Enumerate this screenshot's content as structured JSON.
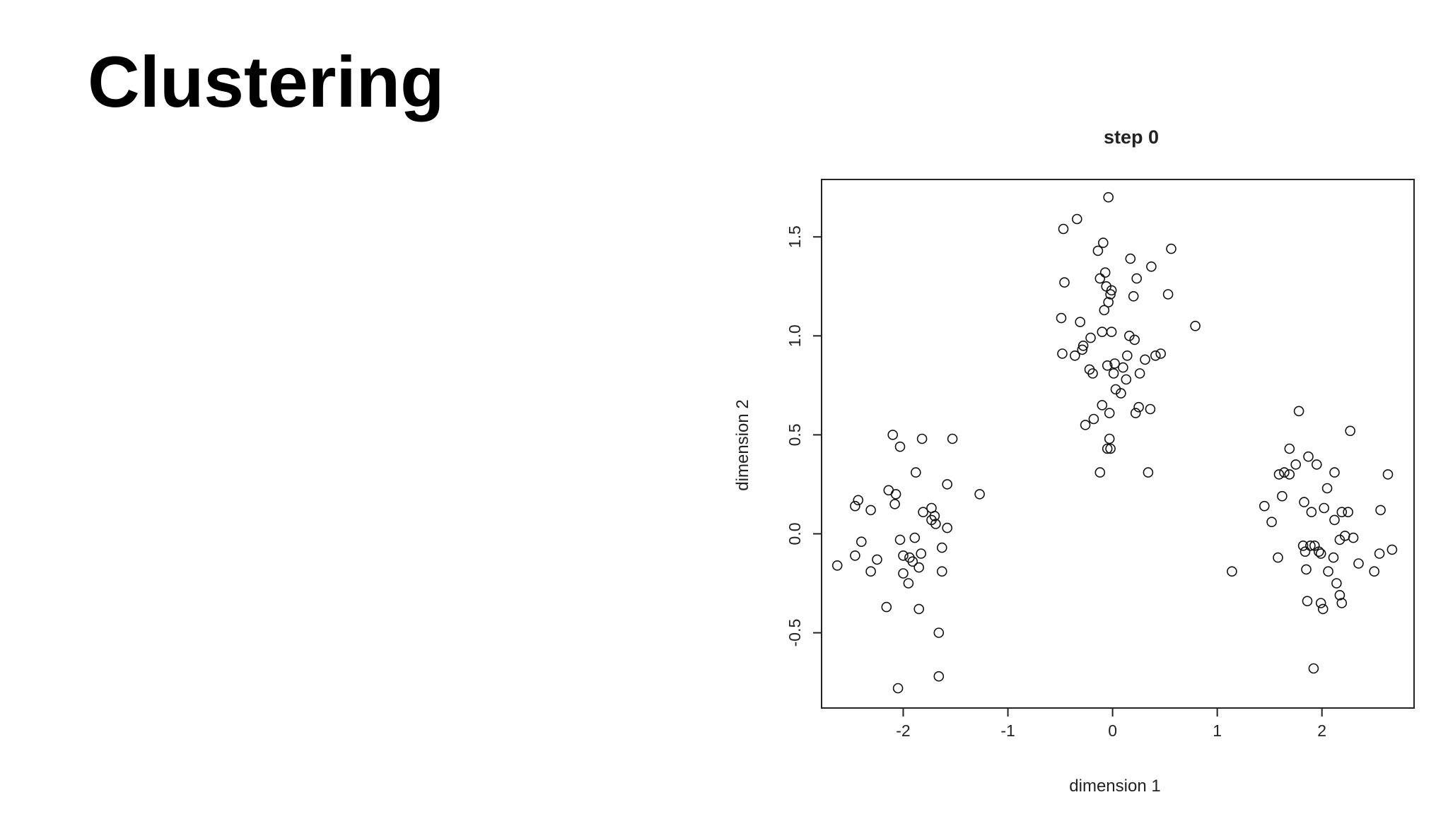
{
  "slide": {
    "title": "Clustering"
  },
  "chart_data": {
    "type": "scatter",
    "title": "step 0",
    "xlabel": "dimension 1",
    "ylabel": "dimension 2",
    "xlim": [
      -2.78,
      2.88
    ],
    "ylim": [
      -0.88,
      1.79
    ],
    "x_ticks": [
      -2,
      -1,
      0,
      1,
      2
    ],
    "y_ticks": [
      -0.5,
      0.0,
      0.5,
      1.0,
      1.5
    ],
    "x_tick_labels": [
      "-2",
      "-1",
      "0",
      "1",
      "2"
    ],
    "y_tick_labels": [
      "-0.5",
      "0.0",
      "0.5",
      "1.0",
      "1.5"
    ],
    "grid": false,
    "legend": "none",
    "marker": "open-circle",
    "colors": {
      "marker": "#111111",
      "axis": "#222222"
    },
    "points": [
      [
        -0.04,
        1.7
      ],
      [
        -0.34,
        1.59
      ],
      [
        -0.47,
        1.54
      ],
      [
        -0.09,
        1.47
      ],
      [
        -0.14,
        1.43
      ],
      [
        0.56,
        1.44
      ],
      [
        0.17,
        1.39
      ],
      [
        0.37,
        1.35
      ],
      [
        -0.07,
        1.32
      ],
      [
        -0.12,
        1.29
      ],
      [
        -0.46,
        1.27
      ],
      [
        0.23,
        1.29
      ],
      [
        -0.06,
        1.25
      ],
      [
        -0.01,
        1.23
      ],
      [
        -0.02,
        1.21
      ],
      [
        0.2,
        1.2
      ],
      [
        0.53,
        1.21
      ],
      [
        -0.04,
        1.17
      ],
      [
        -0.08,
        1.13
      ],
      [
        -0.31,
        1.07
      ],
      [
        -0.49,
        1.09
      ],
      [
        0.79,
        1.05
      ],
      [
        -0.1,
        1.02
      ],
      [
        -0.01,
        1.02
      ],
      [
        0.16,
        1.0
      ],
      [
        0.21,
        0.98
      ],
      [
        -0.21,
        0.99
      ],
      [
        -0.28,
        0.95
      ],
      [
        -0.29,
        0.93
      ],
      [
        -0.48,
        0.91
      ],
      [
        -0.36,
        0.9
      ],
      [
        0.14,
        0.9
      ],
      [
        0.41,
        0.9
      ],
      [
        0.46,
        0.91
      ],
      [
        0.31,
        0.88
      ],
      [
        0.02,
        0.86
      ],
      [
        -0.05,
        0.85
      ],
      [
        0.1,
        0.84
      ],
      [
        -0.22,
        0.83
      ],
      [
        -0.19,
        0.81
      ],
      [
        0.01,
        0.81
      ],
      [
        0.26,
        0.81
      ],
      [
        0.13,
        0.78
      ],
      [
        0.03,
        0.73
      ],
      [
        0.08,
        0.71
      ],
      [
        -0.1,
        0.65
      ],
      [
        0.25,
        0.64
      ],
      [
        0.36,
        0.63
      ],
      [
        -0.03,
        0.61
      ],
      [
        0.22,
        0.61
      ],
      [
        -0.18,
        0.58
      ],
      [
        -0.26,
        0.55
      ],
      [
        -0.03,
        0.48
      ],
      [
        -0.05,
        0.43
      ],
      [
        -0.02,
        0.43
      ],
      [
        -0.12,
        0.31
      ],
      [
        0.34,
        0.31
      ],
      [
        -2.1,
        0.5
      ],
      [
        -1.82,
        0.48
      ],
      [
        -1.53,
        0.48
      ],
      [
        -2.03,
        0.44
      ],
      [
        -1.88,
        0.31
      ],
      [
        -1.58,
        0.25
      ],
      [
        -1.27,
        0.2
      ],
      [
        -2.14,
        0.22
      ],
      [
        -2.07,
        0.2
      ],
      [
        -2.43,
        0.17
      ],
      [
        -2.46,
        0.14
      ],
      [
        -2.31,
        0.12
      ],
      [
        -2.08,
        0.15
      ],
      [
        -1.73,
        0.13
      ],
      [
        -1.81,
        0.11
      ],
      [
        -1.7,
        0.09
      ],
      [
        -1.73,
        0.07
      ],
      [
        -1.69,
        0.05
      ],
      [
        -1.58,
        0.03
      ],
      [
        -1.89,
        -0.02
      ],
      [
        -2.03,
        -0.03
      ],
      [
        -2.4,
        -0.04
      ],
      [
        -1.63,
        -0.07
      ],
      [
        -2.46,
        -0.11
      ],
      [
        -2.0,
        -0.11
      ],
      [
        -1.83,
        -0.1
      ],
      [
        -1.94,
        -0.12
      ],
      [
        -1.91,
        -0.14
      ],
      [
        -2.25,
        -0.13
      ],
      [
        -2.63,
        -0.16
      ],
      [
        -1.85,
        -0.17
      ],
      [
        -2.31,
        -0.19
      ],
      [
        -2.0,
        -0.2
      ],
      [
        -1.63,
        -0.19
      ],
      [
        -1.95,
        -0.25
      ],
      [
        -2.16,
        -0.37
      ],
      [
        -1.85,
        -0.38
      ],
      [
        -1.66,
        -0.5
      ],
      [
        -1.66,
        -0.72
      ],
      [
        -2.05,
        -0.78
      ],
      [
        1.78,
        0.62
      ],
      [
        2.27,
        0.52
      ],
      [
        1.69,
        0.43
      ],
      [
        1.87,
        0.39
      ],
      [
        1.95,
        0.35
      ],
      [
        1.75,
        0.35
      ],
      [
        1.64,
        0.31
      ],
      [
        1.69,
        0.3
      ],
      [
        1.59,
        0.3
      ],
      [
        2.12,
        0.31
      ],
      [
        2.63,
        0.3
      ],
      [
        2.05,
        0.23
      ],
      [
        1.62,
        0.19
      ],
      [
        1.83,
        0.16
      ],
      [
        1.45,
        0.14
      ],
      [
        2.02,
        0.13
      ],
      [
        1.9,
        0.11
      ],
      [
        2.19,
        0.11
      ],
      [
        2.25,
        0.11
      ],
      [
        2.56,
        0.12
      ],
      [
        2.12,
        0.07
      ],
      [
        1.52,
        0.06
      ],
      [
        2.22,
        -0.01
      ],
      [
        2.3,
        -0.02
      ],
      [
        2.17,
        -0.03
      ],
      [
        1.82,
        -0.06
      ],
      [
        1.89,
        -0.06
      ],
      [
        1.93,
        -0.06
      ],
      [
        2.67,
        -0.08
      ],
      [
        1.84,
        -0.09
      ],
      [
        1.97,
        -0.09
      ],
      [
        1.99,
        -0.1
      ],
      [
        2.55,
        -0.1
      ],
      [
        1.58,
        -0.12
      ],
      [
        2.11,
        -0.12
      ],
      [
        2.35,
        -0.15
      ],
      [
        1.85,
        -0.18
      ],
      [
        2.06,
        -0.19
      ],
      [
        2.5,
        -0.19
      ],
      [
        1.14,
        -0.19
      ],
      [
        2.14,
        -0.25
      ],
      [
        2.17,
        -0.31
      ],
      [
        1.86,
        -0.34
      ],
      [
        1.99,
        -0.35
      ],
      [
        2.19,
        -0.35
      ],
      [
        2.01,
        -0.38
      ],
      [
        1.92,
        -0.68
      ]
    ]
  }
}
